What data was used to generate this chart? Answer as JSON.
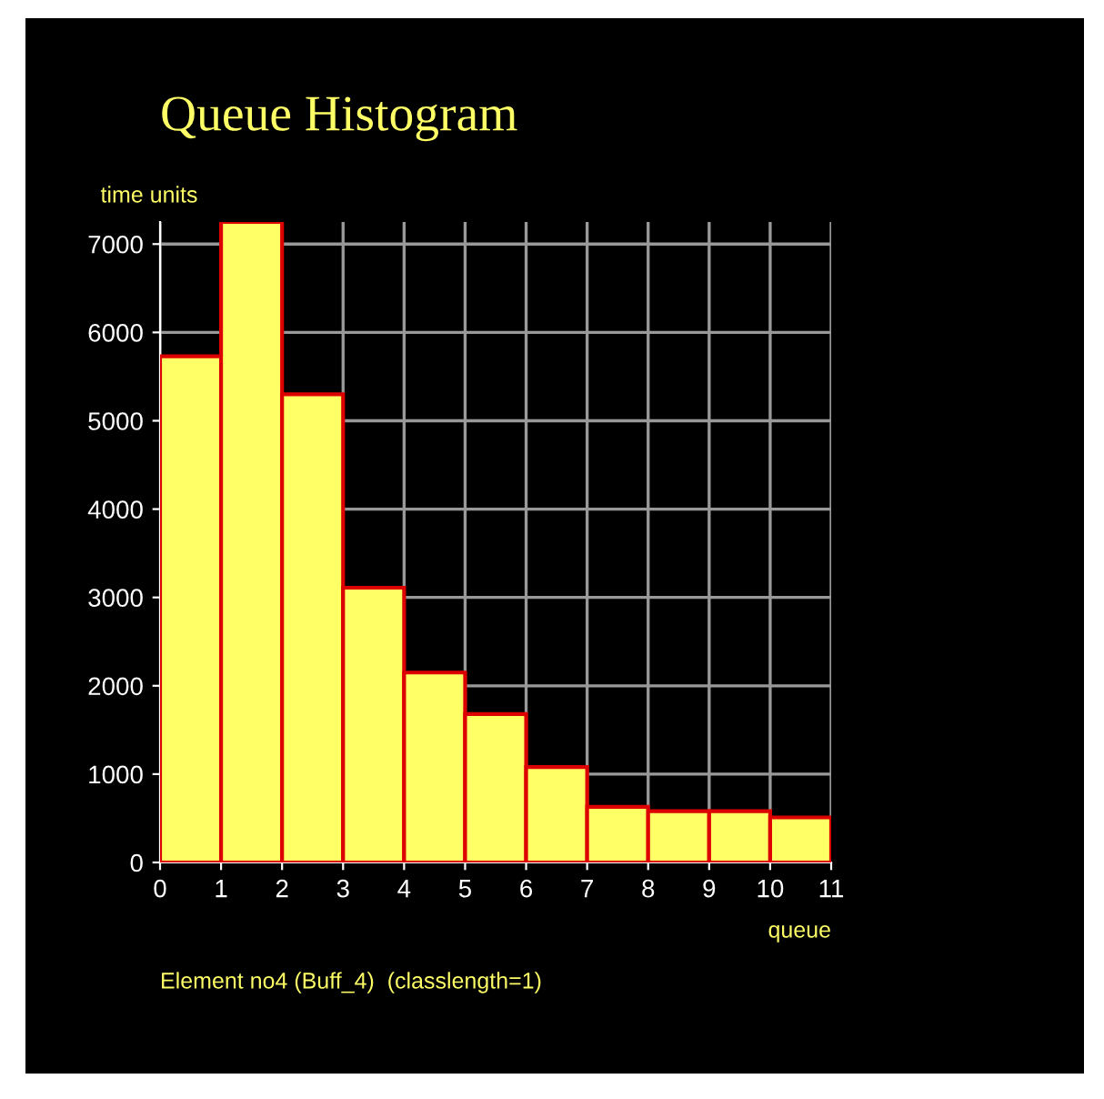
{
  "chart_data": {
    "type": "histogram",
    "title": "Queue Histogram",
    "xlabel": "queue",
    "ylabel": "time units",
    "bins": [
      0,
      1,
      2,
      3,
      4,
      5,
      6,
      7,
      8,
      9,
      10,
      11
    ],
    "values": [
      5730,
      7250,
      5300,
      3110,
      2150,
      1680,
      1080,
      630,
      580,
      580,
      510
    ],
    "color": "#ffff66",
    "xlim": [
      0,
      11
    ],
    "xticks": [
      0,
      1,
      2,
      3,
      4,
      5,
      6,
      7,
      8,
      9,
      10,
      11
    ],
    "ylim": [
      0,
      7250
    ],
    "yticks": [
      0,
      1000,
      2000,
      3000,
      4000,
      5000,
      6000,
      7000
    ],
    "grid": true,
    "annotations": [
      "Element no4 (Buff_4)  (classlength=1)"
    ]
  }
}
